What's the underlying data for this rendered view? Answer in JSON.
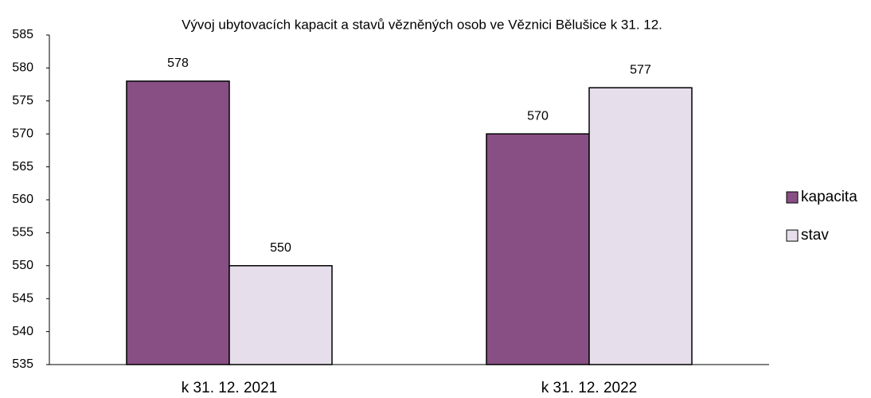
{
  "chart_data": {
    "type": "bar",
    "title": "Vývoj ubytovacích kapacit a stavů vězněných osob ve Věznici Bělušice k 31. 12.",
    "categories": [
      "k 31. 12. 2021",
      "k 31. 12. 2022"
    ],
    "series": [
      {
        "name": "kapacita",
        "color": "#884f84",
        "values": [
          578,
          570
        ]
      },
      {
        "name": "stav",
        "color": "#e6dfeb",
        "values": [
          550,
          577
        ]
      }
    ],
    "ylim": [
      535,
      585
    ],
    "yticks": [
      535,
      540,
      545,
      550,
      555,
      560,
      565,
      570,
      575,
      580,
      585
    ],
    "grid": false,
    "legend": "right"
  }
}
